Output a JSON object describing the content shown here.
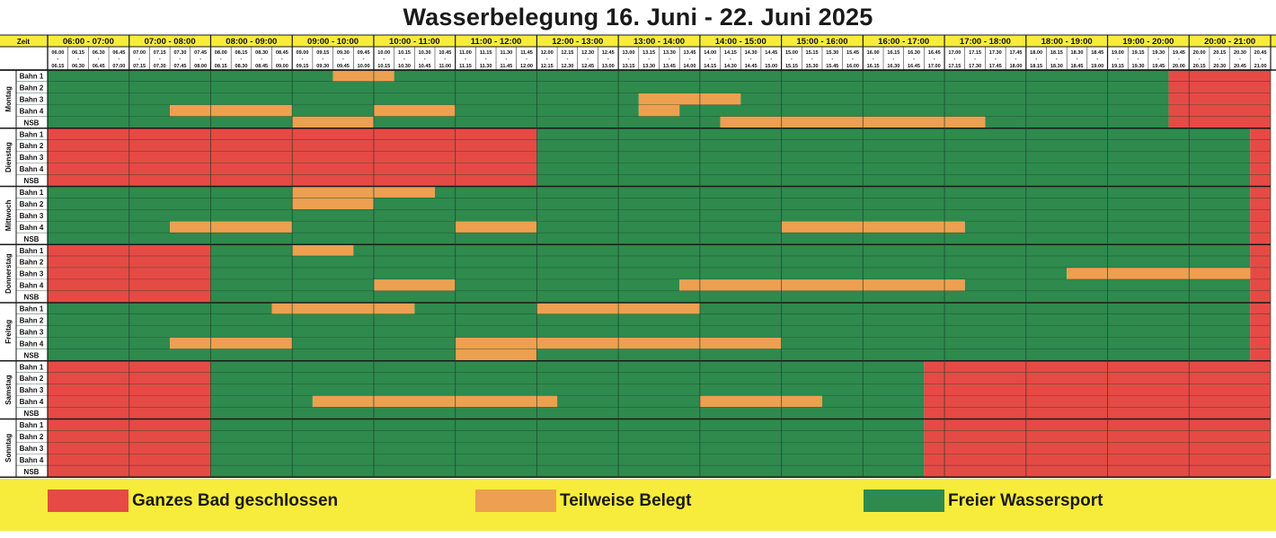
{
  "title": "Wasserbelegung 16. Juni - 22. Juni 2025",
  "zeit_label": "Zeit",
  "colors": {
    "closed": "#e64a45",
    "partial": "#eda04f",
    "free": "#2e8a4d",
    "header": "#f7ec3c",
    "line": "#1a1a1a",
    "cellline": "#20482f"
  },
  "hours": [
    "06:00 - 07:00",
    "07:00 - 08:00",
    "08:00 - 09:00",
    "09:00 - 10:00",
    "10:00 - 11:00",
    "11:00 - 12:00",
    "12:00 - 13:00",
    "13:00 - 14:00",
    "14:00 - 15:00",
    "15:00 - 16:00",
    "16:00 - 17:00",
    "17:00 - 18:00",
    "18:00 - 19:00",
    "19:00 - 20:00",
    "20:00 - 21:00"
  ],
  "slots_start": [
    "06.00",
    "06.15",
    "06.30",
    "06.45",
    "07.00",
    "07.15",
    "07.30",
    "07.45",
    "08.00",
    "08.15",
    "08.30",
    "08.45",
    "09.00",
    "09.15",
    "09.30",
    "09.45",
    "10.00",
    "10.15",
    "10.30",
    "10.45",
    "11.00",
    "11.15",
    "11.30",
    "11.45",
    "12.00",
    "12.15",
    "12.30",
    "12.45",
    "13.00",
    "13.15",
    "13.30",
    "13.45",
    "14.00",
    "14.15",
    "14.30",
    "14.45",
    "15.00",
    "15.15",
    "15.30",
    "15.45",
    "16.00",
    "16.15",
    "16.30",
    "16.45",
    "17.00",
    "17.15",
    "17.30",
    "17.45",
    "18.00",
    "18.15",
    "18.30",
    "18.45",
    "19.00",
    "19.15",
    "19.30",
    "19.45",
    "20.00",
    "20.15",
    "20.30",
    "20.45"
  ],
  "slots_end": [
    "06.15",
    "06.30",
    "06.45",
    "07.00",
    "07.15",
    "07.30",
    "07.45",
    "08.00",
    "08.15",
    "08.30",
    "08.45",
    "09.00",
    "09.15",
    "09.30",
    "09.45",
    "10.00",
    "10.15",
    "10.30",
    "10.45",
    "11.00",
    "11.15",
    "11.30",
    "11.45",
    "12.00",
    "12.15",
    "12.30",
    "12.45",
    "13.00",
    "13.15",
    "13.30",
    "13.45",
    "14.00",
    "14.15",
    "14.30",
    "14.45",
    "15.00",
    "15.15",
    "15.30",
    "15.45",
    "16.00",
    "16.15",
    "16.30",
    "16.45",
    "17.00",
    "17.15",
    "17.30",
    "17.45",
    "18.00",
    "18.15",
    "18.30",
    "18.45",
    "19.00",
    "19.15",
    "19.30",
    "19.45",
    "20.00",
    "20.15",
    "20.30",
    "20.45",
    "21.00"
  ],
  "lanes": [
    "Bahn 1",
    "Bahn 2",
    "Bahn 3",
    "Bahn 4",
    "NSB"
  ],
  "days": [
    {
      "name": "Montag",
      "lanes": [
        [
          [
            "F",
            0,
            14
          ],
          [
            "P",
            14,
            17
          ],
          [
            "F",
            17,
            55
          ],
          [
            "C",
            55,
            60
          ]
        ],
        [
          [
            "F",
            0,
            55
          ],
          [
            "C",
            55,
            60
          ]
        ],
        [
          [
            "F",
            0,
            29
          ],
          [
            "P",
            29,
            34
          ],
          [
            "F",
            34,
            55
          ],
          [
            "C",
            55,
            60
          ]
        ],
        [
          [
            "F",
            0,
            6
          ],
          [
            "P",
            6,
            12
          ],
          [
            "F",
            12,
            16
          ],
          [
            "P",
            16,
            20
          ],
          [
            "F",
            20,
            29
          ],
          [
            "P",
            29,
            31
          ],
          [
            "F",
            31,
            55
          ],
          [
            "C",
            55,
            60
          ]
        ],
        [
          [
            "F",
            0,
            12
          ],
          [
            "P",
            12,
            16
          ],
          [
            "F",
            16,
            33
          ],
          [
            "P",
            33,
            46
          ],
          [
            "F",
            46,
            55
          ],
          [
            "C",
            55,
            60
          ]
        ]
      ]
    },
    {
      "name": "Dienstag",
      "lanes": [
        [
          [
            "C",
            0,
            24
          ],
          [
            "F",
            24,
            59
          ],
          [
            "C",
            59,
            60
          ]
        ],
        [
          [
            "C",
            0,
            24
          ],
          [
            "F",
            24,
            59
          ],
          [
            "C",
            59,
            60
          ]
        ],
        [
          [
            "C",
            0,
            24
          ],
          [
            "F",
            24,
            59
          ],
          [
            "C",
            59,
            60
          ]
        ],
        [
          [
            "C",
            0,
            24
          ],
          [
            "F",
            24,
            59
          ],
          [
            "C",
            59,
            60
          ]
        ],
        [
          [
            "C",
            0,
            24
          ],
          [
            "F",
            24,
            59
          ],
          [
            "C",
            59,
            60
          ]
        ]
      ]
    },
    {
      "name": "Mittwoch",
      "lanes": [
        [
          [
            "F",
            0,
            12
          ],
          [
            "P",
            12,
            19
          ],
          [
            "F",
            19,
            59
          ],
          [
            "C",
            59,
            60
          ]
        ],
        [
          [
            "F",
            0,
            12
          ],
          [
            "P",
            12,
            16
          ],
          [
            "F",
            16,
            59
          ],
          [
            "C",
            59,
            60
          ]
        ],
        [
          [
            "F",
            0,
            59
          ],
          [
            "C",
            59,
            60
          ]
        ],
        [
          [
            "F",
            0,
            6
          ],
          [
            "P",
            6,
            12
          ],
          [
            "F",
            12,
            20
          ],
          [
            "P",
            20,
            24
          ],
          [
            "F",
            24,
            36
          ],
          [
            "P",
            36,
            45
          ],
          [
            "F",
            45,
            59
          ],
          [
            "C",
            59,
            60
          ]
        ],
        [
          [
            "F",
            0,
            59
          ],
          [
            "C",
            59,
            60
          ]
        ]
      ]
    },
    {
      "name": "Donnerstag",
      "lanes": [
        [
          [
            "C",
            0,
            8
          ],
          [
            "F",
            8,
            12
          ],
          [
            "P",
            12,
            15
          ],
          [
            "F",
            15,
            59
          ],
          [
            "C",
            59,
            60
          ]
        ],
        [
          [
            "C",
            0,
            8
          ],
          [
            "F",
            8,
            59
          ],
          [
            "C",
            59,
            60
          ]
        ],
        [
          [
            "C",
            0,
            8
          ],
          [
            "F",
            8,
            50
          ],
          [
            "P",
            50,
            59
          ],
          [
            "C",
            59,
            60
          ]
        ],
        [
          [
            "C",
            0,
            8
          ],
          [
            "F",
            8,
            16
          ],
          [
            "P",
            16,
            20
          ],
          [
            "F",
            20,
            31
          ],
          [
            "P",
            31,
            45
          ],
          [
            "F",
            45,
            59
          ],
          [
            "C",
            59,
            60
          ]
        ],
        [
          [
            "C",
            0,
            8
          ],
          [
            "F",
            8,
            59
          ],
          [
            "C",
            59,
            60
          ]
        ]
      ]
    },
    {
      "name": "Freitag",
      "lanes": [
        [
          [
            "F",
            0,
            11
          ],
          [
            "P",
            11,
            18
          ],
          [
            "F",
            18,
            24
          ],
          [
            "P",
            24,
            32
          ],
          [
            "F",
            32,
            59
          ],
          [
            "C",
            59,
            60
          ]
        ],
        [
          [
            "F",
            0,
            59
          ],
          [
            "C",
            59,
            60
          ]
        ],
        [
          [
            "F",
            0,
            59
          ],
          [
            "C",
            59,
            60
          ]
        ],
        [
          [
            "F",
            0,
            6
          ],
          [
            "P",
            6,
            12
          ],
          [
            "F",
            12,
            20
          ],
          [
            "P",
            20,
            36
          ],
          [
            "F",
            36,
            59
          ],
          [
            "C",
            59,
            60
          ]
        ],
        [
          [
            "F",
            0,
            20
          ],
          [
            "P",
            20,
            24
          ],
          [
            "F",
            24,
            59
          ],
          [
            "C",
            59,
            60
          ]
        ]
      ]
    },
    {
      "name": "Samstag",
      "lanes": [
        [
          [
            "C",
            0,
            8
          ],
          [
            "F",
            8,
            43
          ],
          [
            "C",
            43,
            60
          ]
        ],
        [
          [
            "C",
            0,
            8
          ],
          [
            "F",
            8,
            43
          ],
          [
            "C",
            43,
            60
          ]
        ],
        [
          [
            "C",
            0,
            8
          ],
          [
            "F",
            8,
            43
          ],
          [
            "C",
            43,
            60
          ]
        ],
        [
          [
            "C",
            0,
            8
          ],
          [
            "F",
            8,
            13
          ],
          [
            "P",
            13,
            25
          ],
          [
            "F",
            25,
            32
          ],
          [
            "P",
            32,
            38
          ],
          [
            "F",
            38,
            43
          ],
          [
            "C",
            43,
            60
          ]
        ],
        [
          [
            "C",
            0,
            8
          ],
          [
            "F",
            8,
            43
          ],
          [
            "C",
            43,
            60
          ]
        ]
      ]
    },
    {
      "name": "Sonntag",
      "lanes": [
        [
          [
            "C",
            0,
            8
          ],
          [
            "F",
            8,
            43
          ],
          [
            "C",
            43,
            60
          ]
        ],
        [
          [
            "C",
            0,
            8
          ],
          [
            "F",
            8,
            43
          ],
          [
            "C",
            43,
            60
          ]
        ],
        [
          [
            "C",
            0,
            8
          ],
          [
            "F",
            8,
            43
          ],
          [
            "C",
            43,
            60
          ]
        ],
        [
          [
            "C",
            0,
            8
          ],
          [
            "F",
            8,
            43
          ],
          [
            "C",
            43,
            60
          ]
        ],
        [
          [
            "C",
            0,
            8
          ],
          [
            "F",
            8,
            43
          ],
          [
            "C",
            43,
            60
          ]
        ]
      ]
    }
  ],
  "legend": [
    {
      "label": "Ganzes Bad geschlossen",
      "color": "#e64a45"
    },
    {
      "label": "Teilweise Belegt",
      "color": "#eda04f"
    },
    {
      "label": "Freier Wassersport",
      "color": "#2e8a4d"
    }
  ]
}
